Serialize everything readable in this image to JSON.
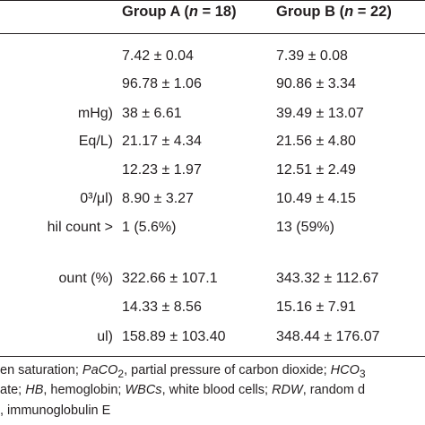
{
  "table": {
    "headers": {
      "group_a": {
        "name": "Group A (",
        "n_var": "n",
        "n_val": " = 18)"
      },
      "group_b": {
        "name": "Group B (",
        "n_var": "n",
        "n_val": " = 22)"
      }
    },
    "rows": [
      {
        "label": "",
        "a": "7.42 ± 0.04",
        "b": "7.39 ± 0.08"
      },
      {
        "label": "",
        "a": "96.78 ± 1.06",
        "b": "90.86 ± 3.34"
      },
      {
        "label": "mHg)",
        "a": "38 ± 6.61",
        "b": "39.49 ± 13.07"
      },
      {
        "label": "Eq/L)",
        "a": "21.17 ± 4.34",
        "b": "21.56 ± 4.80"
      },
      {
        "label": "",
        "a": "12.23 ± 1.97",
        "b": "12.51 ± 2.49"
      },
      {
        "label": "0³/μl)",
        "a": "8.90 ± 3.27",
        "b": "10.49 ± 4.15"
      },
      {
        "label": "hil count >",
        "a": "1 (5.6%)",
        "b": "13 (59%)"
      },
      {
        "label": "ount (%)",
        "a": "322.66 ± 107.1",
        "b": "343.32 ± 112.67"
      },
      {
        "label": "",
        "a": "14.33 ± 8.56",
        "b": "15.16 ± 7.91"
      },
      {
        "label": "ul)",
        "a": "158.89 ± 103.40",
        "b": "348.44 ± 176.07"
      }
    ]
  },
  "footnote": {
    "line1_a": "en saturation; ",
    "line1_b": "PaCO",
    "line1_b_sub": "2",
    "line1_c": ", partial pressure of carbon dioxide; ",
    "line1_d": "HCO",
    "line1_d_sub": "3",
    "line2_a": "ate; ",
    "line2_b": "HB",
    "line2_c": ", hemoglobin; ",
    "line2_d": "WBCs",
    "line2_e": ", white blood cells; ",
    "line2_f": "RDW",
    "line2_g": ", random d",
    "line3": ", immunoglobulin E"
  }
}
